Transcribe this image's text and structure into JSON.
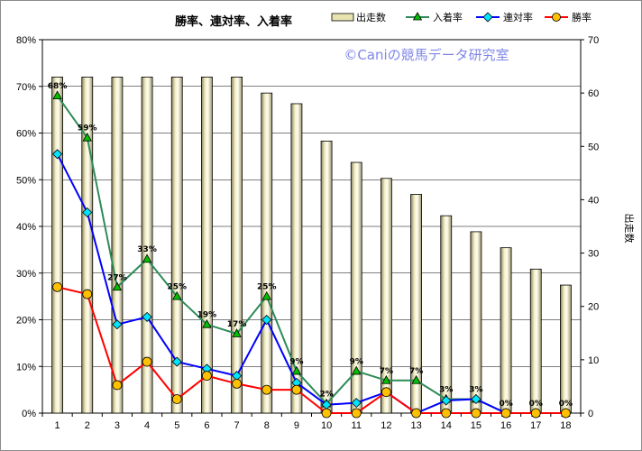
{
  "chart_data": {
    "type": "bar+line",
    "title": "勝率、連対率、入着率",
    "watermark": "©Caniの競馬データ研究室",
    "categories": [
      "1",
      "2",
      "3",
      "4",
      "5",
      "6",
      "7",
      "8",
      "9",
      "10",
      "11",
      "12",
      "13",
      "14",
      "15",
      "16",
      "17",
      "18"
    ],
    "left_axis": {
      "min": 0,
      "max": 80,
      "step": 10,
      "unit": "%"
    },
    "right_axis": {
      "min": 0,
      "max": 70,
      "step": 10,
      "label": "出走数"
    },
    "grid": true,
    "legend_position": "top-right",
    "legend": [
      "出走数",
      "入着率",
      "連対率",
      "勝率"
    ],
    "bars": {
      "name": "出走数",
      "values": [
        63,
        63,
        63,
        63,
        63,
        63,
        63,
        60,
        58,
        51,
        47,
        44,
        41,
        37,
        34,
        31,
        27,
        24
      ],
      "color": "#e8e4b0"
    },
    "series": [
      {
        "name": "入着率",
        "color": "#2e8b57",
        "marker": "triangle",
        "values": [
          68,
          59,
          27,
          33,
          25,
          19,
          17,
          25,
          9,
          2,
          9,
          7,
          7,
          3,
          3,
          0,
          0,
          0
        ],
        "data_labels": [
          "68%",
          "59%",
          "27%",
          "33%",
          "25%",
          "19%",
          "17%",
          "25%",
          "9%",
          "2%",
          "9%",
          "7%",
          "7%",
          "3%",
          "3%",
          "0%",
          "0%",
          "0%"
        ]
      },
      {
        "name": "連対率",
        "color": "#0000ff",
        "marker": "diamond",
        "values": [
          55.5,
          43,
          19,
          20.6,
          11,
          9.5,
          8,
          20,
          6.5,
          1.8,
          2.2,
          4.5,
          0,
          2.7,
          3,
          0,
          0,
          0
        ]
      },
      {
        "name": "勝率",
        "color": "#ff0000",
        "marker": "circle",
        "values": [
          27,
          25.5,
          6,
          11,
          3,
          8,
          6.3,
          5,
          5,
          0,
          0,
          4.5,
          0,
          0,
          0,
          0,
          0,
          0
        ]
      }
    ]
  }
}
